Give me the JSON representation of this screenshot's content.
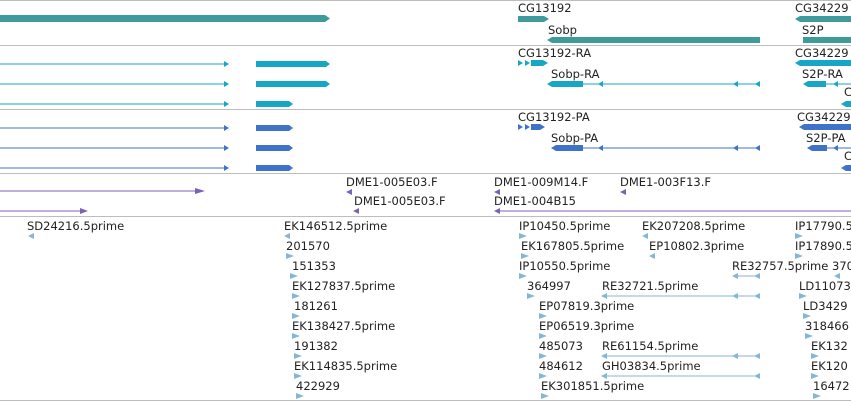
{
  "colors": {
    "teal": "#3e9a9b",
    "cyan": "#17a7c4",
    "blue": "#3f73c9",
    "purple": "#7b62b5",
    "est": "#84b6d7",
    "separator": "#bdbdbd",
    "background": "#ffffff",
    "text": "#222222"
  },
  "tracks": {
    "genes": {
      "labels": [
        "CG13192",
        "Sobp",
        "CG34229",
        "S2P"
      ]
    },
    "transcripts_ra": {
      "labels": [
        "CG13192-RA",
        "Sobp-RA",
        "CG34229",
        "S2P-RA",
        "C"
      ]
    },
    "proteins_pa": {
      "labels": [
        "CG13192-PA",
        "Sobp-PA",
        "CG34229",
        "S2P-PA",
        "C"
      ]
    },
    "cdna_clones": {
      "labels": [
        "DME1-005E03.F",
        "DME1-005E03.F",
        "DME1-009M14.F",
        "DME1-004B15",
        "DME1-003F13.F"
      ]
    },
    "est_alignments": {
      "labels": [
        "SD24216.5prime",
        "EK146512.5prime",
        "201570",
        "151353",
        "EK127837.5prime",
        "181261",
        "EK138427.5prime",
        "191382",
        "EK114835.5prime",
        "422929",
        "IP10450.5prime",
        "EK167805.5prime",
        "IP10550.5prime",
        "364997",
        "EP07819.3prime",
        "EP06519.3prime",
        "485073",
        "484612",
        "EK301851.5prime",
        "EK207208.5prime",
        "EP10802.3prime",
        "RE32757.5prime",
        "RE32721.5prime",
        "RE61154.5prime",
        "GH03834.5prime",
        "IP17790.5",
        "IP17890.5",
        "370",
        "LD11073",
        "LD3429",
        "318466",
        "EK132",
        "EK120",
        "16472"
      ]
    }
  }
}
